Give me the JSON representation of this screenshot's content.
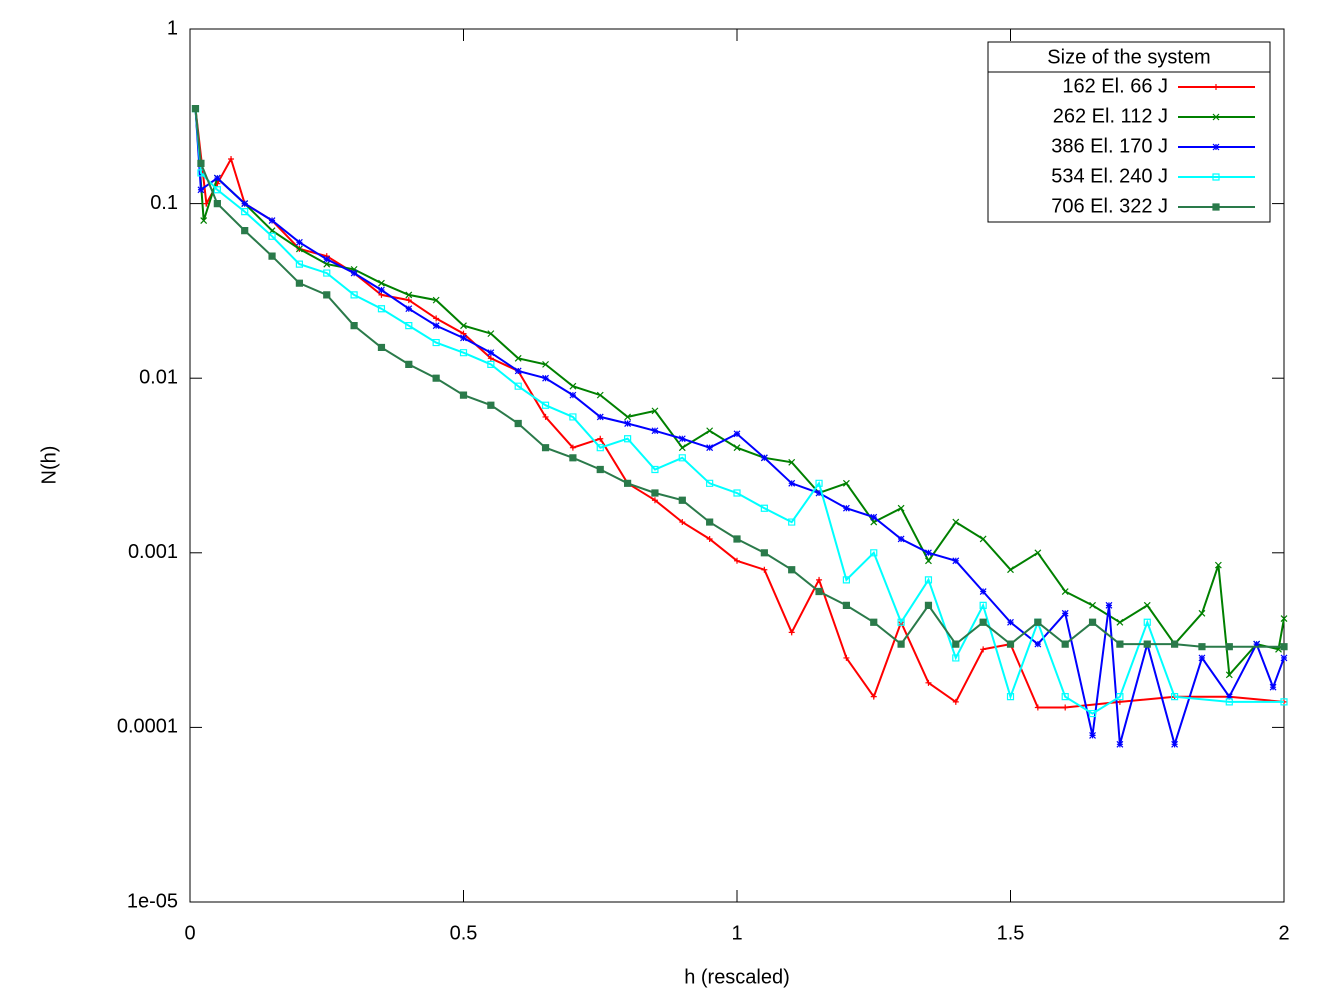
{
  "chart_data": {
    "type": "line",
    "xlabel": "h (rescaled)",
    "ylabel": "N(h)",
    "xlim": [
      0,
      2
    ],
    "ylim": [
      1e-05,
      1
    ],
    "ylog": true,
    "xticks": [
      0,
      0.5,
      1,
      1.5,
      2
    ],
    "yticks": [
      {
        "value": 1e-05,
        "label": "1e-05"
      },
      0.0001,
      0.001,
      0.01,
      0.1,
      1
    ],
    "legend_title": "Size of the system",
    "legend_position": "top-right",
    "series": [
      {
        "name": "162 El. 66 J",
        "color": "#ff0000",
        "marker": "plus",
        "x": [
          0.01,
          0.03,
          0.05,
          0.075,
          0.1,
          0.15,
          0.2,
          0.25,
          0.3,
          0.35,
          0.4,
          0.45,
          0.5,
          0.55,
          0.6,
          0.65,
          0.7,
          0.75,
          0.8,
          0.85,
          0.9,
          0.95,
          1.0,
          1.05,
          1.1,
          1.15,
          1.2,
          1.25,
          1.3,
          1.35,
          1.4,
          1.45,
          1.5,
          1.55,
          1.6,
          1.7,
          1.8,
          1.9,
          2.0
        ],
        "values": [
          0.35,
          0.1,
          0.13,
          0.18,
          0.1,
          0.08,
          0.055,
          0.05,
          0.04,
          0.03,
          0.028,
          0.022,
          0.018,
          0.013,
          0.011,
          0.006,
          0.004,
          0.0045,
          0.0025,
          0.002,
          0.0015,
          0.0012,
          0.0009,
          0.0008,
          0.00035,
          0.0007,
          0.00025,
          0.00015,
          0.0004,
          0.00018,
          0.00014,
          0.00028,
          0.0003,
          0.00013,
          0.00013,
          0.00014,
          0.00015,
          0.00015,
          0.00014
        ]
      },
      {
        "name": "262 El. 112 J",
        "color": "#008000",
        "marker": "cross",
        "x": [
          0.01,
          0.025,
          0.05,
          0.1,
          0.15,
          0.2,
          0.25,
          0.3,
          0.35,
          0.4,
          0.45,
          0.5,
          0.55,
          0.6,
          0.65,
          0.7,
          0.75,
          0.8,
          0.85,
          0.9,
          0.95,
          1.0,
          1.05,
          1.1,
          1.15,
          1.2,
          1.25,
          1.3,
          1.35,
          1.4,
          1.45,
          1.5,
          1.55,
          1.6,
          1.65,
          1.7,
          1.75,
          1.8,
          1.85,
          1.88,
          1.9,
          1.95,
          1.99,
          2.0
        ],
        "values": [
          0.35,
          0.08,
          0.14,
          0.1,
          0.07,
          0.055,
          0.045,
          0.042,
          0.035,
          0.03,
          0.028,
          0.02,
          0.018,
          0.013,
          0.012,
          0.009,
          0.008,
          0.006,
          0.0065,
          0.004,
          0.005,
          0.004,
          0.0035,
          0.0033,
          0.0022,
          0.0025,
          0.0015,
          0.0018,
          0.0009,
          0.0015,
          0.0012,
          0.0008,
          0.001,
          0.0006,
          0.0005,
          0.0004,
          0.0005,
          0.0003,
          0.00045,
          0.00085,
          0.0002,
          0.0003,
          0.00028,
          0.00042
        ]
      },
      {
        "name": "386 El. 170 J",
        "color": "#0000ff",
        "marker": "star",
        "x": [
          0.01,
          0.02,
          0.05,
          0.1,
          0.15,
          0.2,
          0.25,
          0.3,
          0.35,
          0.4,
          0.45,
          0.5,
          0.55,
          0.6,
          0.65,
          0.7,
          0.75,
          0.8,
          0.85,
          0.9,
          0.95,
          1.0,
          1.05,
          1.1,
          1.15,
          1.2,
          1.25,
          1.3,
          1.35,
          1.4,
          1.45,
          1.5,
          1.55,
          1.6,
          1.65,
          1.68,
          1.7,
          1.75,
          1.8,
          1.85,
          1.9,
          1.95,
          1.98,
          2.0
        ],
        "values": [
          0.35,
          0.12,
          0.14,
          0.1,
          0.08,
          0.06,
          0.048,
          0.04,
          0.032,
          0.025,
          0.02,
          0.017,
          0.014,
          0.011,
          0.01,
          0.008,
          0.006,
          0.0055,
          0.005,
          0.0045,
          0.004,
          0.0048,
          0.0035,
          0.0025,
          0.0022,
          0.0018,
          0.0016,
          0.0012,
          0.001,
          0.0009,
          0.0006,
          0.0004,
          0.0003,
          0.00045,
          9e-05,
          0.0005,
          8e-05,
          0.0003,
          8e-05,
          0.00025,
          0.00015,
          0.0003,
          0.00017,
          0.00025
        ]
      },
      {
        "name": "534 El. 240 J",
        "color": "#00ffff",
        "marker": "box",
        "x": [
          0.01,
          0.02,
          0.05,
          0.1,
          0.15,
          0.2,
          0.25,
          0.3,
          0.35,
          0.4,
          0.45,
          0.5,
          0.55,
          0.6,
          0.65,
          0.7,
          0.75,
          0.8,
          0.85,
          0.9,
          0.95,
          1.0,
          1.05,
          1.1,
          1.15,
          1.2,
          1.25,
          1.3,
          1.35,
          1.4,
          1.45,
          1.5,
          1.55,
          1.6,
          1.65,
          1.7,
          1.75,
          1.8,
          1.9,
          2.0
        ],
        "values": [
          0.35,
          0.15,
          0.12,
          0.09,
          0.065,
          0.045,
          0.04,
          0.03,
          0.025,
          0.02,
          0.016,
          0.014,
          0.012,
          0.009,
          0.007,
          0.006,
          0.004,
          0.0045,
          0.003,
          0.0035,
          0.0025,
          0.0022,
          0.0018,
          0.0015,
          0.0025,
          0.0007,
          0.001,
          0.0004,
          0.0007,
          0.00025,
          0.0005,
          0.00015,
          0.0004,
          0.00015,
          0.00012,
          0.00015,
          0.0004,
          0.00015,
          0.00014,
          0.00014
        ]
      },
      {
        "name": "706 El. 322 J",
        "color": "#2a7a4a",
        "marker": "filled-box",
        "x": [
          0.01,
          0.02,
          0.05,
          0.1,
          0.15,
          0.2,
          0.25,
          0.3,
          0.35,
          0.4,
          0.45,
          0.5,
          0.55,
          0.6,
          0.65,
          0.7,
          0.75,
          0.8,
          0.85,
          0.9,
          0.95,
          1.0,
          1.05,
          1.1,
          1.15,
          1.2,
          1.25,
          1.3,
          1.35,
          1.4,
          1.45,
          1.5,
          1.55,
          1.6,
          1.65,
          1.7,
          1.75,
          1.8,
          1.85,
          1.9,
          2.0
        ],
        "values": [
          0.35,
          0.17,
          0.1,
          0.07,
          0.05,
          0.035,
          0.03,
          0.02,
          0.015,
          0.012,
          0.01,
          0.008,
          0.007,
          0.0055,
          0.004,
          0.0035,
          0.003,
          0.0025,
          0.0022,
          0.002,
          0.0015,
          0.0012,
          0.001,
          0.0008,
          0.0006,
          0.0005,
          0.0004,
          0.0003,
          0.0005,
          0.0003,
          0.0004,
          0.0003,
          0.0004,
          0.0003,
          0.0004,
          0.0003,
          0.0003,
          0.0003,
          0.00029,
          0.00029,
          0.00029
        ]
      }
    ]
  }
}
